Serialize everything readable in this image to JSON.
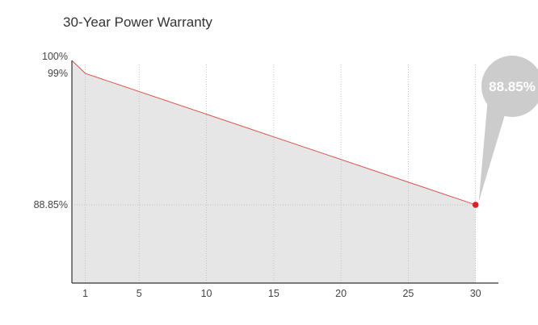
{
  "title": "30-Year Power Warranty",
  "colors": {
    "line": "#d9534f",
    "area": "#e6e6e6",
    "marker": "#dd2222",
    "callout": "#cccccc",
    "axis": "#333333",
    "grid": "#bbbbbb"
  },
  "callout": {
    "label": "88.85%"
  },
  "chart_data": {
    "type": "area",
    "title": "30-Year Power Warranty",
    "xlabel": "",
    "ylabel": "",
    "x_ticks": [
      1,
      5,
      10,
      15,
      20,
      25,
      30
    ],
    "y_ticks": [
      {
        "value": 100,
        "label": "100%"
      },
      {
        "value": 99,
        "label": "99%"
      },
      {
        "value": 88.85,
        "label": "88.85%"
      }
    ],
    "xlim": [
      0,
      31.7
    ],
    "ylim": [
      82.8,
      100
    ],
    "grid": "vertical dotted at x ticks, horizontal dotted at 88.85",
    "series": [
      {
        "points": [
          {
            "x": 0,
            "y": 100
          },
          {
            "x": 1,
            "y": 99
          },
          {
            "x": 30,
            "y": 88.85
          }
        ]
      }
    ],
    "annotation": {
      "x": 30,
      "y": 88.85,
      "label": "88.85%"
    }
  }
}
